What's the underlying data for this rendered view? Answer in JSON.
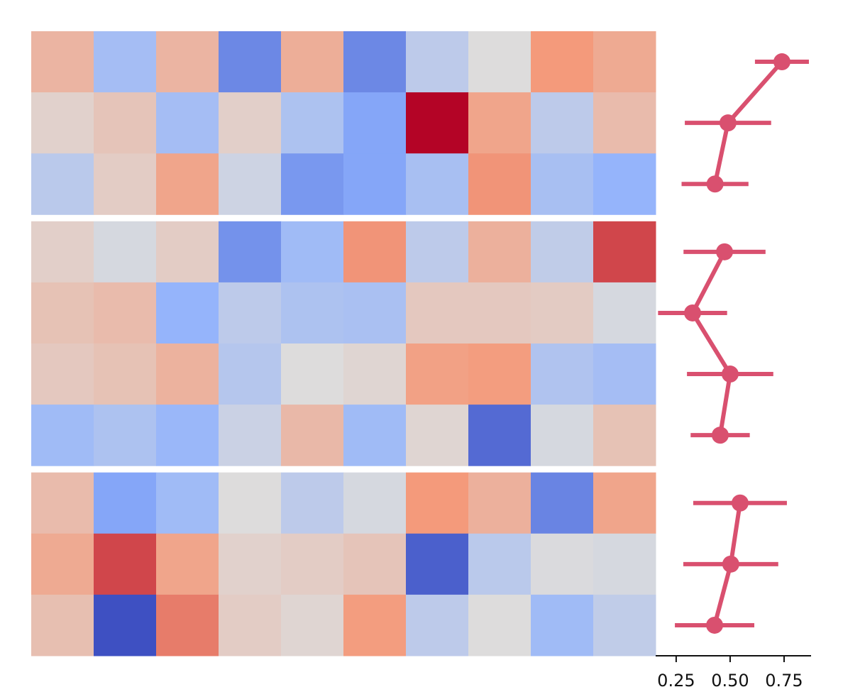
{
  "chart_data": [
    {
      "type": "heatmap",
      "cmap": "coolwarm",
      "clim": [
        -1,
        1
      ],
      "groups": [
        {
          "values": [
            [
              0.3,
              -0.35,
              0.3,
              -0.7,
              0.35,
              -0.7,
              -0.2,
              0.0,
              0.5,
              0.38
            ],
            [
              0.08,
              0.18,
              -0.35,
              0.1,
              -0.3,
              -0.55,
              1.0,
              0.42,
              -0.2,
              0.25
            ],
            [
              -0.22,
              0.12,
              0.42,
              -0.1,
              -0.62,
              -0.55,
              -0.33,
              0.52,
              -0.33,
              -0.45
            ]
          ]
        },
        {
          "values": [
            [
              0.1,
              -0.05,
              0.12,
              -0.65,
              -0.38,
              0.52,
              -0.2,
              0.33,
              -0.18,
              0.78
            ],
            [
              0.2,
              0.25,
              -0.45,
              -0.2,
              -0.3,
              -0.32,
              0.15,
              0.15,
              0.13,
              -0.05
            ],
            [
              0.15,
              0.2,
              0.32,
              -0.25,
              0.0,
              0.05,
              0.45,
              0.48,
              -0.28,
              -0.35
            ],
            [
              -0.38,
              -0.3,
              -0.42,
              -0.12,
              0.27,
              -0.38,
              0.05,
              -0.85,
              -0.05,
              0.2
            ]
          ]
        },
        {
          "values": [
            [
              0.25,
              -0.55,
              -0.38,
              0.0,
              -0.2,
              -0.05,
              0.5,
              0.33,
              -0.72,
              0.42
            ],
            [
              0.38,
              0.78,
              0.42,
              0.08,
              0.12,
              0.18,
              -0.9,
              -0.22,
              -0.02,
              -0.05
            ],
            [
              0.22,
              -0.98,
              0.6,
              0.12,
              0.05,
              0.48,
              -0.2,
              0.0,
              -0.38,
              -0.18
            ]
          ]
        }
      ]
    },
    {
      "type": "errorbar",
      "color": "#d9506f",
      "xlim": [
        0.155,
        0.875
      ],
      "xticks": [
        0.25,
        {
          "value": 0.5,
          "label": "0.50"
        },
        0.75
      ],
      "groups": [
        {
          "values": [
            0.74,
            0.49,
            0.43
          ],
          "errors": [
            0.125,
            0.2,
            0.155
          ]
        },
        {
          "values": [
            0.474,
            0.326,
            0.5,
            0.454
          ],
          "errors": [
            0.19,
            0.16,
            0.2,
            0.137
          ]
        },
        {
          "values": [
            0.546,
            0.503,
            0.428
          ],
          "errors": [
            0.217,
            0.22,
            0.184
          ]
        }
      ]
    }
  ]
}
